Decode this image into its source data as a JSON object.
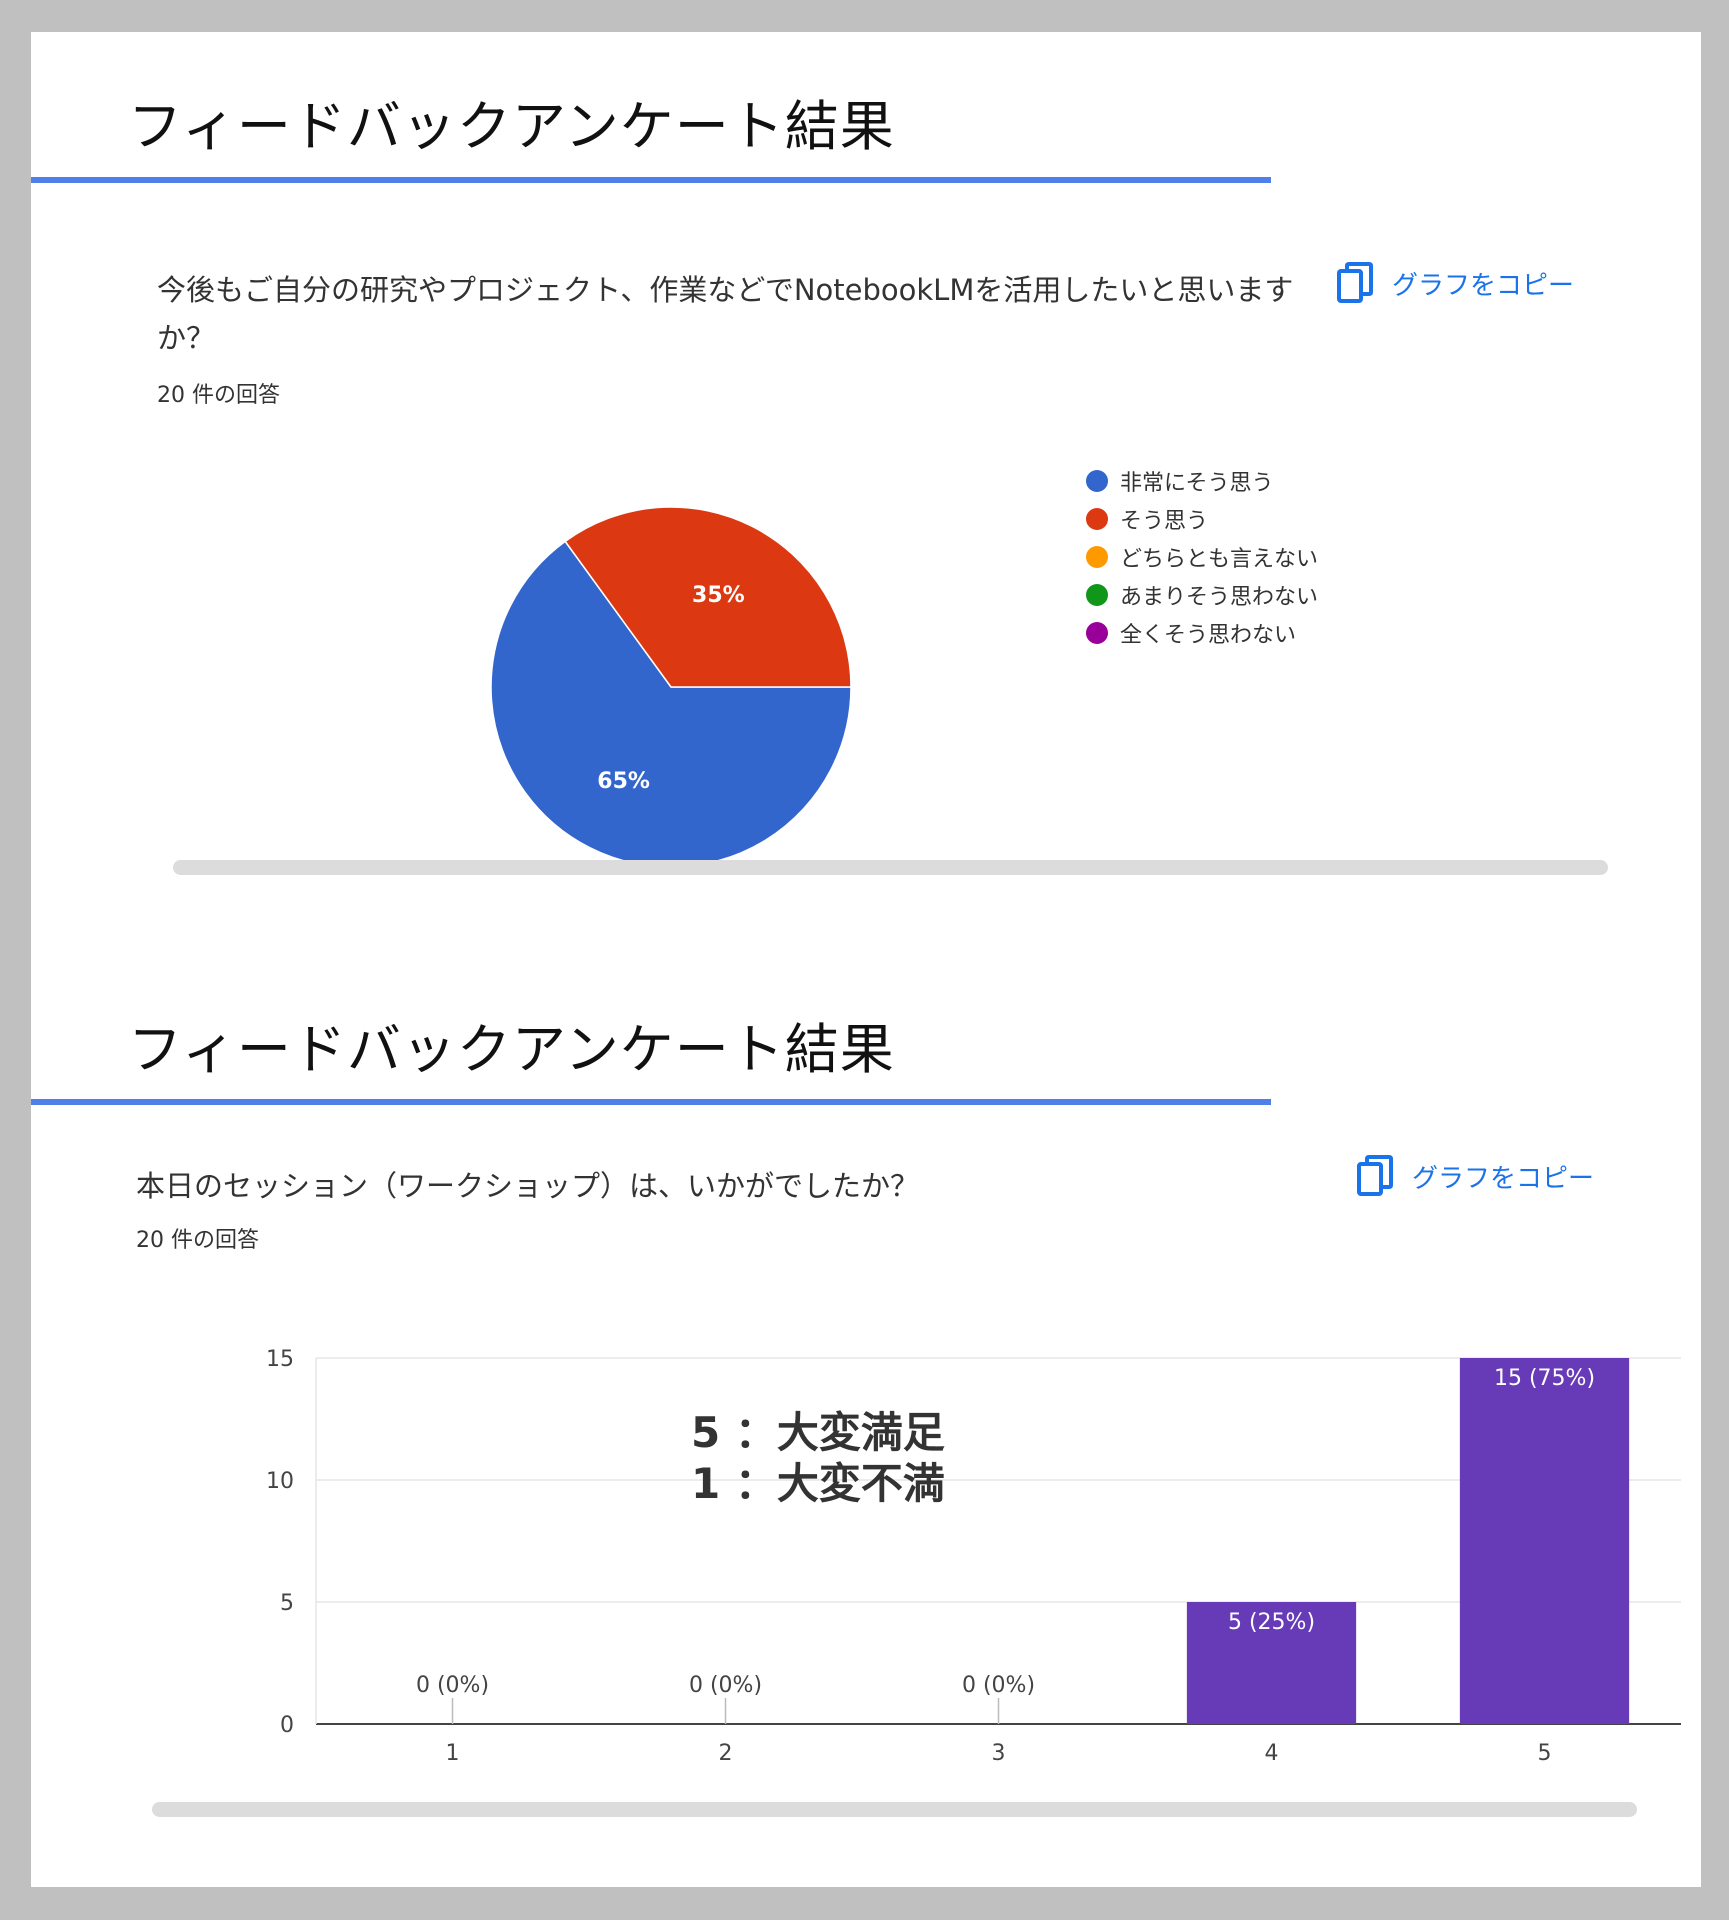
{
  "section1": {
    "title": "フィードバックアンケート結果",
    "question": "今後もご自分の研究やプロジェクト、作業などでNotebookLMを活用したいと思いますか？",
    "count": "20 件の回答",
    "copy_label": "グラフをコピー"
  },
  "section2": {
    "title": "フィードバックアンケート結果",
    "question": "本日のセッション（ワークショップ）は、いかがでしたか？",
    "count": "20 件の回答",
    "copy_label": "グラフをコピー",
    "annotation_line1": "5 ：大変満足",
    "annotation_line2": "1 ：大変不満"
  },
  "colors": {
    "accent_rule": "#4f7fe8",
    "copy_link": "#1a73e8",
    "bar": "#673ab7"
  },
  "chart_data": [
    {
      "type": "pie",
      "labels": [
        "非常にそう思う",
        "そう思う",
        "どちらとも言えない",
        "あまりそう思わない",
        "全くそう思わない"
      ],
      "values": [
        65,
        35,
        0,
        0,
        0
      ],
      "value_labels": [
        "65%",
        "35%",
        "",
        "",
        ""
      ],
      "colors": [
        "#3366cc",
        "#dc3912",
        "#ff9900",
        "#109618",
        "#990099"
      ],
      "legend": "right"
    },
    {
      "type": "bar",
      "categories": [
        "1",
        "2",
        "3",
        "4",
        "5"
      ],
      "values": [
        0,
        0,
        0,
        5,
        15
      ],
      "value_labels": [
        "0 (0%)",
        "0 (0%)",
        "0 (0%)",
        "5 (25%)",
        "15 (75%)"
      ],
      "ylim": [
        0,
        15
      ],
      "yticks": [
        "0",
        "5",
        "10",
        "15"
      ],
      "grid": true
    }
  ]
}
